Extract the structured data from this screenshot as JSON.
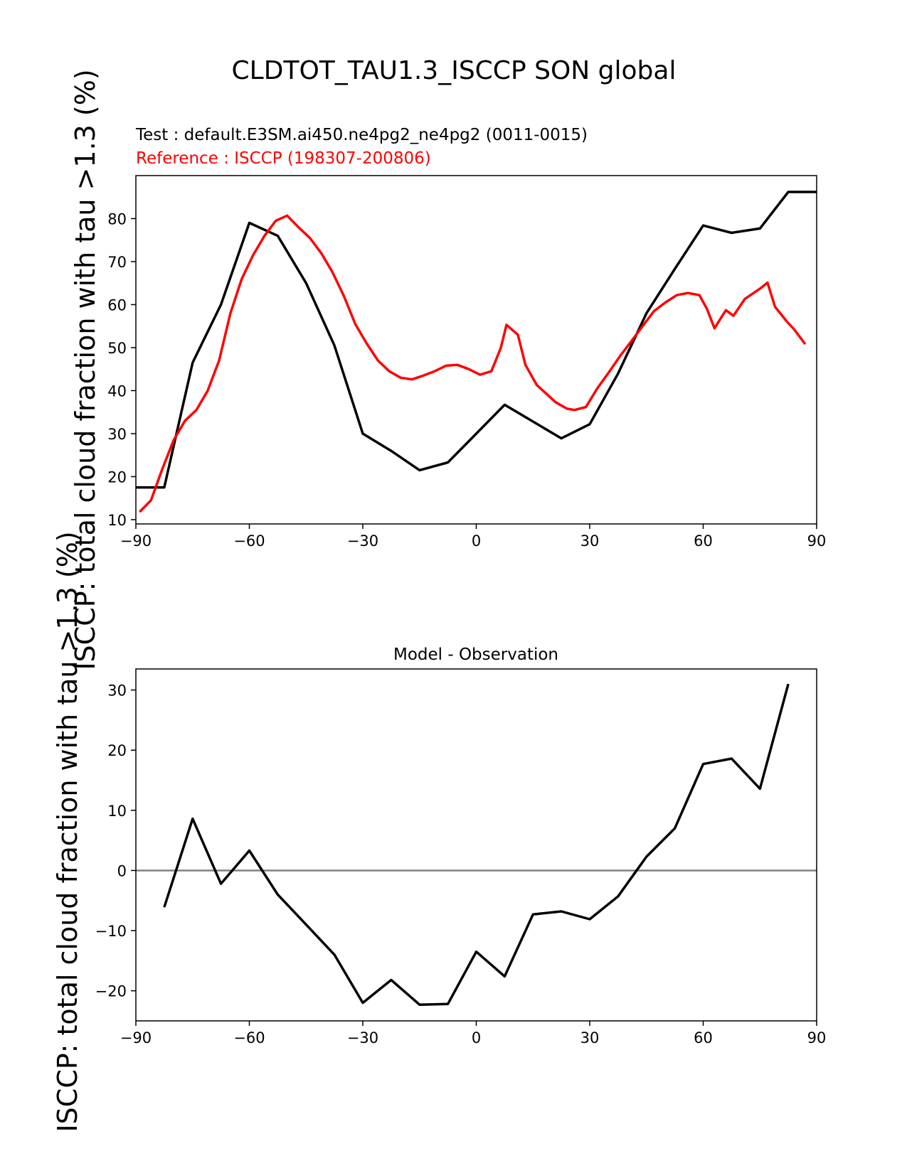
{
  "chart_data": [
    {
      "type": "line",
      "title": "CLDTOT_TAU1.3_ISCCP SON global",
      "test_label": "Test : default.E3SM.ai450.ne4pg2_ne4pg2 (0011-0015)",
      "reference_label": "Reference : ISCCP (198307-200806)",
      "ylabel": "ISCCP: total cloud fraction with tau >1.3 (%)",
      "xlim": [
        -90,
        90
      ],
      "ylim": [
        9,
        90
      ],
      "xticks": [
        -90,
        -60,
        -30,
        0,
        30,
        60,
        90
      ],
      "yticks": [
        10,
        20,
        30,
        40,
        50,
        60,
        70,
        80
      ],
      "series": [
        {
          "color": "#000000",
          "x": [
            -90,
            -82.5,
            -75,
            -67.5,
            -60,
            -52.5,
            -45,
            -37.5,
            -30,
            -22.5,
            -15,
            -7.5,
            0,
            7.5,
            15,
            22.5,
            30,
            37.5,
            45,
            52.5,
            60,
            67.5,
            75,
            82.5,
            90
          ],
          "y": [
            17.5,
            17.5,
            46.5,
            60,
            79,
            76,
            65,
            50.5,
            30,
            26,
            21.5,
            23.3,
            30,
            36.7,
            32.8,
            28.9,
            32.2,
            44,
            58,
            68.3,
            78.4,
            76.7,
            77.7,
            86.2,
            86.2
          ]
        },
        {
          "color": "#ff0000",
          "x": [
            -89,
            -86,
            -83,
            -80,
            -77,
            -74,
            -71,
            -68,
            -65,
            -62,
            -59,
            -56,
            -53,
            -50,
            -47,
            -44,
            -41,
            -38,
            -35,
            -32,
            -29,
            -26,
            -23,
            -20,
            -17,
            -14,
            -11,
            -8,
            -5,
            -2,
            1,
            4,
            6.5,
            8,
            11,
            13,
            16,
            19,
            21,
            24,
            26,
            29,
            32,
            35,
            38,
            41,
            44,
            47,
            50,
            53,
            56,
            59,
            61,
            63,
            66,
            68,
            71,
            75,
            77,
            79,
            82,
            84,
            87
          ],
          "y": [
            11.8,
            14.5,
            21.8,
            28.5,
            33,
            35.5,
            40,
            47,
            58,
            66,
            71.5,
            76,
            79.5,
            80.7,
            78,
            75.5,
            72,
            67.5,
            62,
            55.5,
            51,
            47,
            44.5,
            43,
            42.6,
            43.5,
            44.5,
            45.8,
            46,
            45,
            43.7,
            44.5,
            50,
            55.3,
            53,
            46,
            41.3,
            38.9,
            37.3,
            35.8,
            35.5,
            36.2,
            40.5,
            44.2,
            48,
            51.5,
            55,
            58.5,
            60.5,
            62.2,
            62.7,
            62.2,
            59,
            54.5,
            58.7,
            57.4,
            61.3,
            63.7,
            65.1,
            59.5,
            56.2,
            54.3,
            50.8
          ]
        }
      ]
    },
    {
      "type": "line",
      "title": "Model - Observation",
      "ylabel": "ISCCP: total cloud fraction with tau >1.3 (%)",
      "xlim": [
        -90,
        90
      ],
      "ylim": [
        -25,
        33.5
      ],
      "xticks": [
        -90,
        -60,
        -30,
        0,
        30,
        60,
        90
      ],
      "yticks": [
        -20,
        -10,
        0,
        10,
        20,
        30
      ],
      "zero_line_color": "#808080",
      "series": [
        {
          "color": "#000000",
          "x": [
            -82.5,
            -75,
            -67.5,
            -60,
            -52.5,
            -45,
            -37.5,
            -30,
            -22.5,
            -15,
            -7.5,
            0,
            7.5,
            15,
            22.5,
            30,
            37.5,
            45,
            52.5,
            60,
            67.5,
            75,
            82.5
          ],
          "y": [
            -6.1,
            8.6,
            -2.2,
            3.3,
            -4,
            -9,
            -14,
            -22,
            -18.2,
            -22.3,
            -22.2,
            -13.5,
            -17.6,
            -7.3,
            -6.8,
            -8.1,
            -4.3,
            2.3,
            7,
            17.7,
            18.6,
            13.6,
            31
          ]
        }
      ]
    }
  ]
}
